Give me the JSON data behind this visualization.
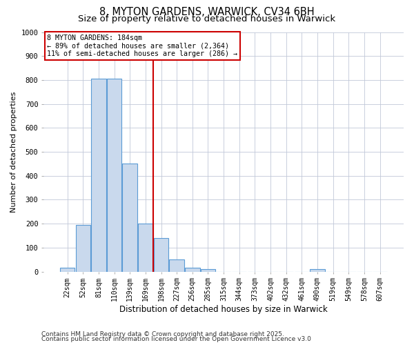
{
  "title1": "8, MYTON GARDENS, WARWICK, CV34 6BH",
  "title2": "Size of property relative to detached houses in Warwick",
  "xlabel": "Distribution of detached houses by size in Warwick",
  "ylabel": "Number of detached properties",
  "categories": [
    "22sqm",
    "52sqm",
    "81sqm",
    "110sqm",
    "139sqm",
    "169sqm",
    "198sqm",
    "227sqm",
    "256sqm",
    "285sqm",
    "315sqm",
    "344sqm",
    "373sqm",
    "402sqm",
    "432sqm",
    "461sqm",
    "490sqm",
    "519sqm",
    "549sqm",
    "578sqm",
    "607sqm"
  ],
  "values": [
    15,
    195,
    805,
    805,
    450,
    200,
    140,
    50,
    15,
    10,
    0,
    0,
    0,
    0,
    0,
    0,
    10,
    0,
    0,
    0,
    0
  ],
  "bar_color": "#c9d9ed",
  "bar_edge_color": "#5b9bd5",
  "vline_index": 6,
  "vline_color": "#cc0000",
  "annotation_title": "8 MYTON GARDENS: 184sqm",
  "annotation_line2": "← 89% of detached houses are smaller (2,364)",
  "annotation_line3": "11% of semi-detached houses are larger (286) →",
  "annotation_box_color": "#ffffff",
  "annotation_box_edge": "#cc0000",
  "ylim": [
    0,
    1000
  ],
  "yticks": [
    0,
    100,
    200,
    300,
    400,
    500,
    600,
    700,
    800,
    900,
    1000
  ],
  "footer1": "Contains HM Land Registry data © Crown copyright and database right 2025.",
  "footer2": "Contains public sector information licensed under the Open Government Licence v3.0",
  "bg_color": "#ffffff",
  "grid_color": "#c0c8d8",
  "title_fontsize": 10.5,
  "subtitle_fontsize": 9.5
}
